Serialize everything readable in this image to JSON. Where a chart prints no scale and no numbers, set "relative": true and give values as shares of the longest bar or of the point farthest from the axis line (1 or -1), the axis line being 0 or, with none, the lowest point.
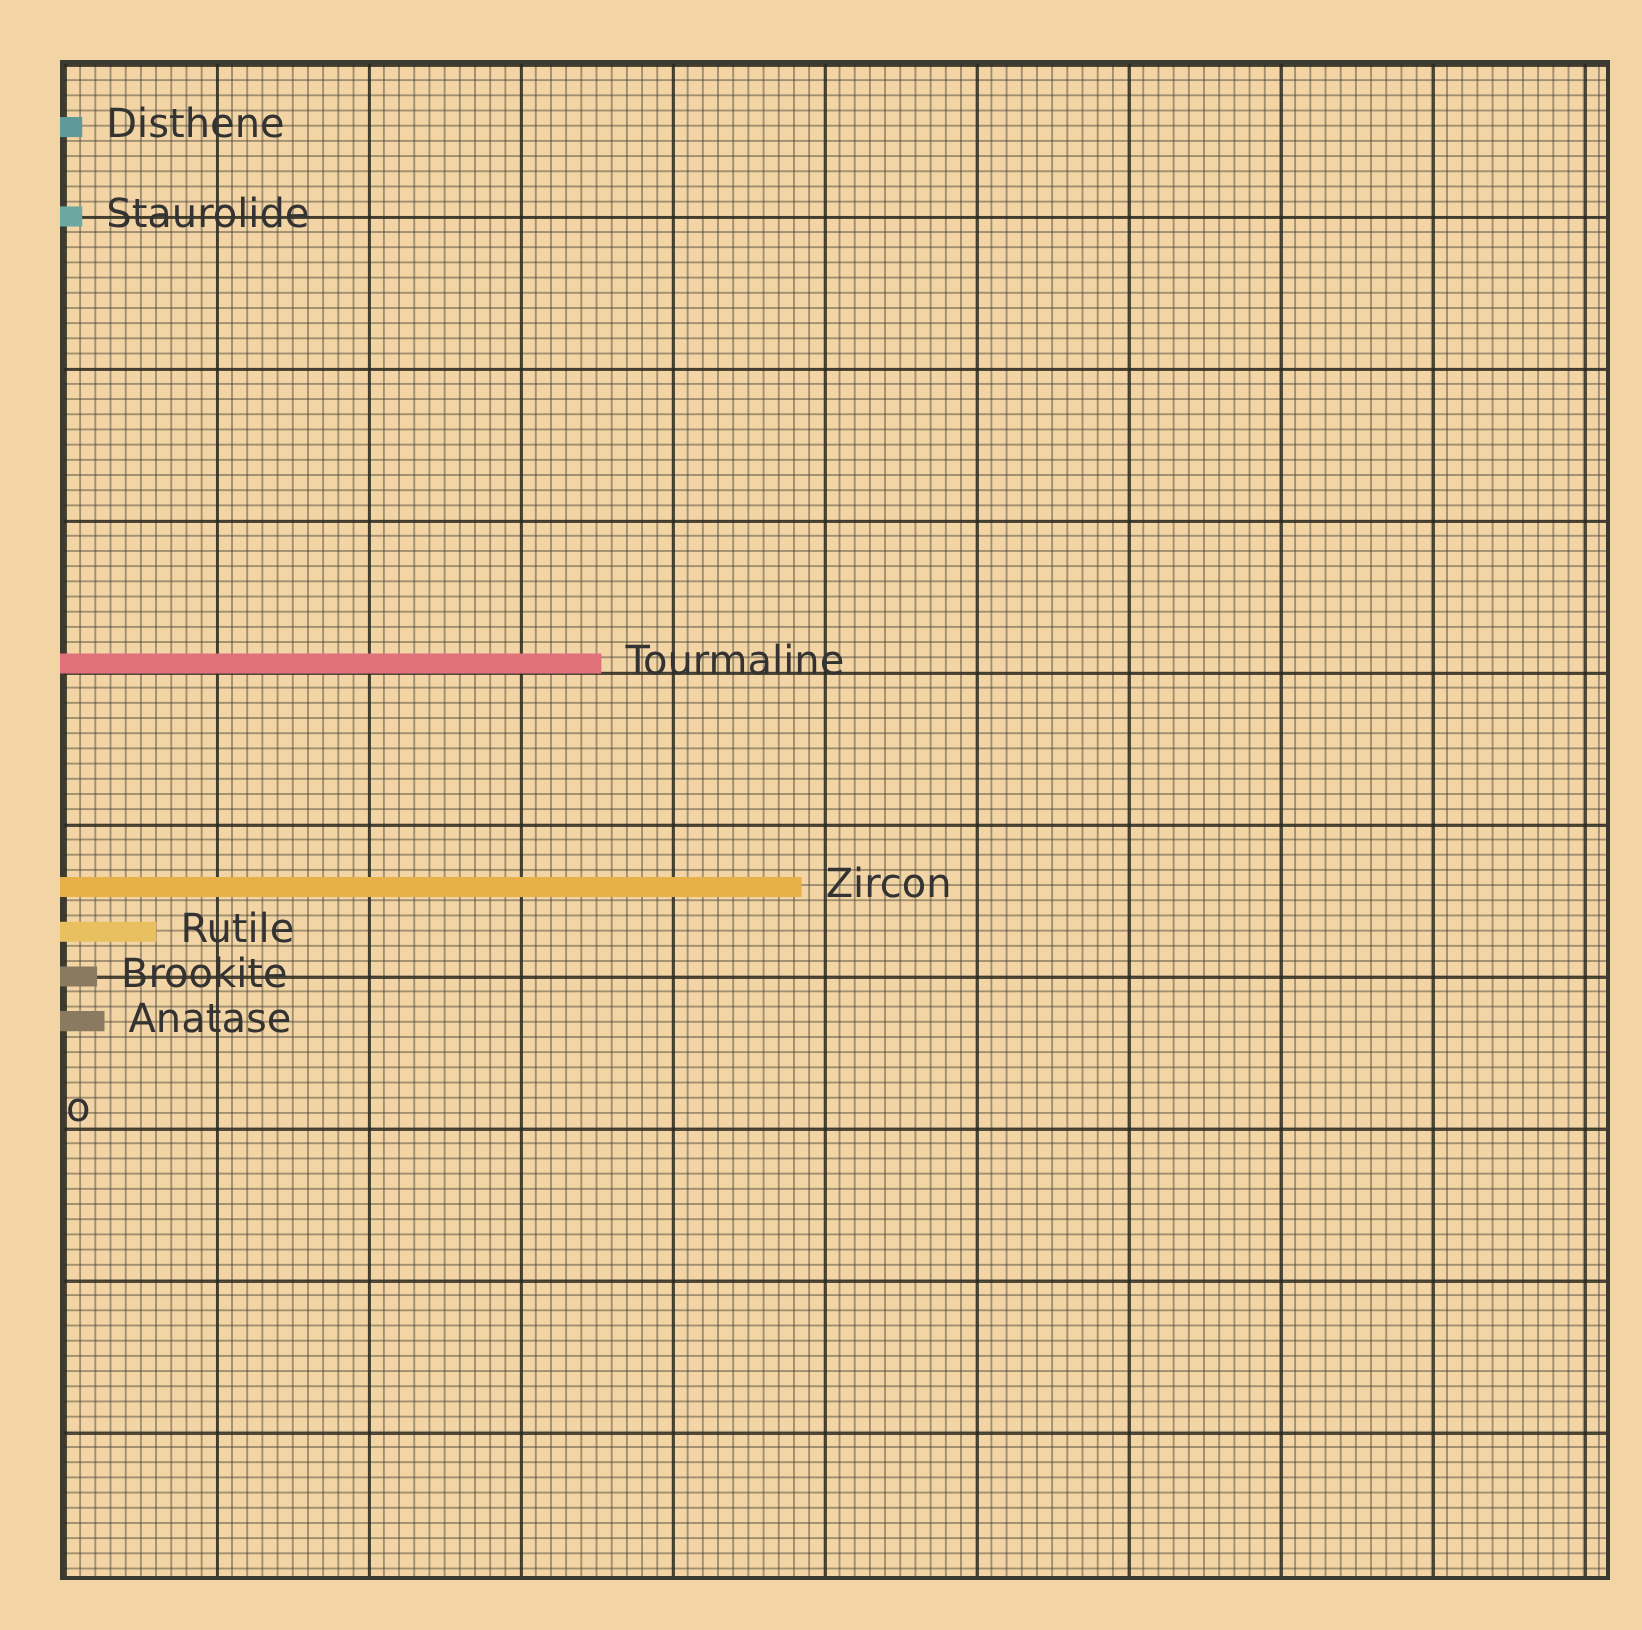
{
  "chart_data": {
    "type": "bar",
    "orientation": "horizontal",
    "relative": true,
    "categories": [
      null,
      "Disthene",
      null,
      "Staurolide",
      null,
      null,
      null,
      null,
      null,
      null,
      null,
      null,
      null,
      "Tourmaline",
      null,
      null,
      null,
      null,
      "Zircon",
      "Rutile",
      "Brookite",
      "Anatase",
      null,
      "o",
      null,
      null,
      null,
      null,
      null,
      null,
      null,
      null,
      null,
      null
    ],
    "values": [
      null,
      0.03,
      null,
      0.03,
      null,
      null,
      null,
      null,
      null,
      null,
      null,
      null,
      null,
      0.73,
      null,
      null,
      null,
      null,
      1,
      0.13,
      0.05,
      0.06,
      null,
      null,
      null,
      null,
      null,
      null,
      null,
      null,
      null,
      null,
      null,
      null
    ],
    "colors": [
      "#f2d3a2",
      "#5f9a98",
      "#f2d3a2",
      "#6aa8a0",
      "#f2d3a2",
      "#f2d3a2",
      "#f2d3a2",
      "#f2d3a2",
      "#f2d3a2",
      "#f2d3a2",
      "#f2d3a2",
      "#f2d3a2",
      "#f2d3a2",
      "#e0707a",
      "#f2d3a2",
      "#f2d3a2",
      "#f2d3a2",
      "#f2d3a2",
      "#e8b048",
      "#e8c060",
      "#8a7a60",
      "#8a7a60",
      "#f2d3a2",
      "#f2d3a2",
      "#f2d3a2",
      "#f2d3a2",
      "#f2d3a2",
      "#f2d3a2",
      "#f2d3a2",
      "#f2d3a2",
      "#f2d3a2",
      "#f2d3a2",
      "#f2d3a2",
      "#f2d3a2"
    ],
    "legend": false
  }
}
